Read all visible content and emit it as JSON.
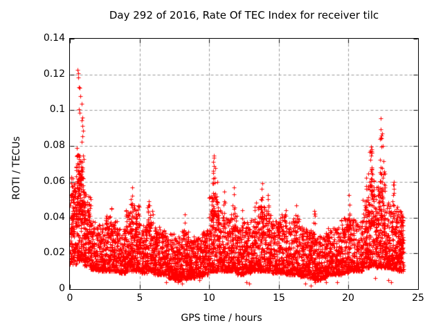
{
  "colors": {
    "background": "#ffffff",
    "marker": "#ff0000",
    "grid": "#999999",
    "border": "#000000",
    "text": "#000000"
  },
  "chart_data": {
    "type": "scatter",
    "title": "Day 292 of 2016, Rate Of TEC Index for receiver tilc",
    "xlabel": "GPS time / hours",
    "ylabel": "ROTI / TECUs",
    "xlim": [
      0,
      25
    ],
    "ylim": [
      0,
      0.14
    ],
    "xticks": [
      0,
      5,
      10,
      15,
      20,
      25
    ],
    "xtick_labels": [
      "0",
      "5",
      "10",
      "15",
      "20",
      "25"
    ],
    "yticks": [
      0,
      0.02,
      0.04,
      0.06,
      0.08,
      0.1,
      0.12,
      0.14
    ],
    "ytick_labels": [
      "0",
      "0.02",
      "0.04",
      "0.06",
      "0.08",
      "0.1",
      "0.12",
      "0.14"
    ],
    "grid": true,
    "legend": "none",
    "marker": "+",
    "marker_color": "#ff0000",
    "marker_size_px": 7,
    "time_coverage_hours": [
      0,
      23.95
    ],
    "baseline_bins_format": [
      "t_start",
      "t_end",
      "roti_min",
      "roti_max",
      "point_count"
    ],
    "baseline_bins": [
      [
        0.0,
        0.5,
        0.014,
        0.062,
        120
      ],
      [
        0.5,
        1.0,
        0.016,
        0.075,
        150
      ],
      [
        1.0,
        1.5,
        0.013,
        0.052,
        130
      ],
      [
        1.5,
        2.0,
        0.011,
        0.038,
        115
      ],
      [
        2.0,
        2.5,
        0.01,
        0.036,
        115
      ],
      [
        2.5,
        3.0,
        0.01,
        0.042,
        115
      ],
      [
        3.0,
        3.5,
        0.01,
        0.038,
        115
      ],
      [
        3.5,
        4.0,
        0.009,
        0.034,
        115
      ],
      [
        4.0,
        4.5,
        0.01,
        0.044,
        120
      ],
      [
        4.5,
        5.0,
        0.01,
        0.048,
        125
      ],
      [
        5.0,
        5.5,
        0.009,
        0.036,
        115
      ],
      [
        5.5,
        6.0,
        0.01,
        0.044,
        115
      ],
      [
        6.0,
        6.5,
        0.008,
        0.035,
        115
      ],
      [
        6.5,
        7.0,
        0.008,
        0.033,
        115
      ],
      [
        7.0,
        7.5,
        0.006,
        0.031,
        125
      ],
      [
        7.5,
        8.0,
        0.005,
        0.03,
        135
      ],
      [
        8.0,
        8.5,
        0.006,
        0.034,
        135
      ],
      [
        8.5,
        9.0,
        0.006,
        0.03,
        125
      ],
      [
        9.0,
        9.5,
        0.007,
        0.029,
        115
      ],
      [
        9.5,
        10.0,
        0.008,
        0.033,
        115
      ],
      [
        10.0,
        10.5,
        0.01,
        0.052,
        125
      ],
      [
        10.5,
        11.0,
        0.01,
        0.046,
        115
      ],
      [
        11.0,
        11.5,
        0.01,
        0.04,
        115
      ],
      [
        11.5,
        12.0,
        0.01,
        0.042,
        115
      ],
      [
        12.0,
        12.5,
        0.008,
        0.035,
        115
      ],
      [
        12.5,
        13.0,
        0.009,
        0.038,
        115
      ],
      [
        13.0,
        13.5,
        0.01,
        0.04,
        115
      ],
      [
        13.5,
        14.0,
        0.01,
        0.047,
        125
      ],
      [
        14.0,
        14.5,
        0.01,
        0.044,
        115
      ],
      [
        14.5,
        15.0,
        0.009,
        0.038,
        115
      ],
      [
        15.0,
        15.5,
        0.009,
        0.042,
        115
      ],
      [
        15.5,
        16.0,
        0.008,
        0.038,
        115
      ],
      [
        16.0,
        16.5,
        0.008,
        0.04,
        115
      ],
      [
        16.5,
        17.0,
        0.007,
        0.035,
        115
      ],
      [
        17.0,
        17.5,
        0.006,
        0.033,
        125
      ],
      [
        17.5,
        18.0,
        0.005,
        0.031,
        135
      ],
      [
        18.0,
        18.5,
        0.006,
        0.032,
        115
      ],
      [
        18.5,
        19.0,
        0.008,
        0.034,
        115
      ],
      [
        19.0,
        19.5,
        0.008,
        0.035,
        115
      ],
      [
        19.5,
        20.0,
        0.009,
        0.04,
        115
      ],
      [
        20.0,
        20.5,
        0.01,
        0.042,
        115
      ],
      [
        20.5,
        21.0,
        0.01,
        0.038,
        115
      ],
      [
        21.0,
        21.5,
        0.012,
        0.052,
        125
      ],
      [
        21.5,
        22.0,
        0.013,
        0.062,
        135
      ],
      [
        22.0,
        22.5,
        0.012,
        0.058,
        135
      ],
      [
        22.5,
        23.0,
        0.012,
        0.05,
        125
      ],
      [
        23.0,
        23.5,
        0.011,
        0.047,
        125
      ],
      [
        23.5,
        23.95,
        0.01,
        0.044,
        130
      ]
    ],
    "spike_columns_format": [
      "t_center",
      "roti_min",
      "roti_max",
      "point_count",
      "t_jitter"
    ],
    "spike_columns": [
      [
        0.12,
        0.03,
        0.066,
        16,
        0.1
      ],
      [
        0.3,
        0.032,
        0.06,
        14,
        0.1
      ],
      [
        0.55,
        0.035,
        0.077,
        40,
        0.12
      ],
      [
        0.72,
        0.038,
        0.072,
        26,
        0.08
      ],
      [
        0.85,
        0.035,
        0.068,
        22,
        0.08
      ],
      [
        1.05,
        0.03,
        0.058,
        16,
        0.08
      ],
      [
        1.3,
        0.025,
        0.048,
        10,
        0.08
      ],
      [
        2.9,
        0.028,
        0.046,
        8,
        0.1
      ],
      [
        4.4,
        0.028,
        0.056,
        14,
        0.1
      ],
      [
        4.72,
        0.028,
        0.05,
        10,
        0.08
      ],
      [
        5.65,
        0.028,
        0.05,
        9,
        0.08
      ],
      [
        8.3,
        0.026,
        0.042,
        7,
        0.08
      ],
      [
        10.33,
        0.03,
        0.074,
        26,
        0.09
      ],
      [
        10.55,
        0.03,
        0.062,
        12,
        0.07
      ],
      [
        11.05,
        0.028,
        0.055,
        9,
        0.07
      ],
      [
        11.75,
        0.028,
        0.056,
        10,
        0.08
      ],
      [
        12.4,
        0.026,
        0.046,
        7,
        0.08
      ],
      [
        13.3,
        0.028,
        0.049,
        8,
        0.08
      ],
      [
        13.8,
        0.028,
        0.058,
        12,
        0.1
      ],
      [
        14.2,
        0.028,
        0.053,
        9,
        0.08
      ],
      [
        15.45,
        0.026,
        0.047,
        8,
        0.08
      ],
      [
        16.3,
        0.026,
        0.049,
        8,
        0.08
      ],
      [
        17.55,
        0.024,
        0.044,
        7,
        0.08
      ],
      [
        20.05,
        0.028,
        0.052,
        9,
        0.08
      ],
      [
        21.35,
        0.03,
        0.065,
        18,
        0.1
      ],
      [
        21.62,
        0.035,
        0.079,
        22,
        0.09
      ],
      [
        22.33,
        0.035,
        0.088,
        26,
        0.09
      ],
      [
        22.55,
        0.03,
        0.074,
        14,
        0.07
      ],
      [
        23.25,
        0.028,
        0.059,
        12,
        0.09
      ],
      [
        23.85,
        0.018,
        0.047,
        16,
        0.08
      ]
    ],
    "extreme_points_format": [
      "t_hours",
      "roti"
    ],
    "extreme_points": [
      [
        0.57,
        0.1225
      ],
      [
        0.6,
        0.1205
      ],
      [
        0.58,
        0.1185
      ],
      [
        0.63,
        0.113
      ],
      [
        0.7,
        0.1125
      ],
      [
        0.73,
        0.108
      ],
      [
        0.85,
        0.1035
      ],
      [
        0.65,
        0.1005
      ],
      [
        0.7,
        0.0985
      ],
      [
        0.88,
        0.096
      ],
      [
        0.83,
        0.0945
      ],
      [
        0.89,
        0.0912
      ],
      [
        0.95,
        0.0885
      ],
      [
        0.9,
        0.0855
      ],
      [
        0.86,
        0.0825
      ],
      [
        0.52,
        0.079
      ],
      [
        10.35,
        0.0745
      ],
      [
        10.31,
        0.071
      ],
      [
        10.42,
        0.0675
      ],
      [
        21.6,
        0.0795
      ],
      [
        21.68,
        0.076
      ],
      [
        22.32,
        0.0955
      ],
      [
        22.3,
        0.0893
      ],
      [
        22.43,
        0.0872
      ],
      [
        22.27,
        0.0838
      ],
      [
        22.47,
        0.08
      ],
      [
        4.45,
        0.0568
      ],
      [
        11.78,
        0.057
      ],
      [
        13.82,
        0.059
      ],
      [
        20.05,
        0.0525
      ],
      [
        23.28,
        0.06
      ]
    ],
    "low_outliers": [
      [
        6.9,
        0.004
      ],
      [
        7.75,
        0.004
      ],
      [
        8.05,
        0.003
      ],
      [
        8.35,
        0.005
      ],
      [
        9.3,
        0.005
      ],
      [
        12.65,
        0.004
      ],
      [
        12.85,
        0.003
      ],
      [
        16.9,
        0.003
      ],
      [
        17.3,
        0.002
      ],
      [
        17.6,
        0.004
      ],
      [
        18.4,
        0.004
      ],
      [
        19.2,
        0.004
      ],
      [
        21.9,
        0.006
      ],
      [
        22.85,
        0.005
      ],
      [
        23.05,
        0.004
      ]
    ],
    "random_seed": 20161019
  }
}
